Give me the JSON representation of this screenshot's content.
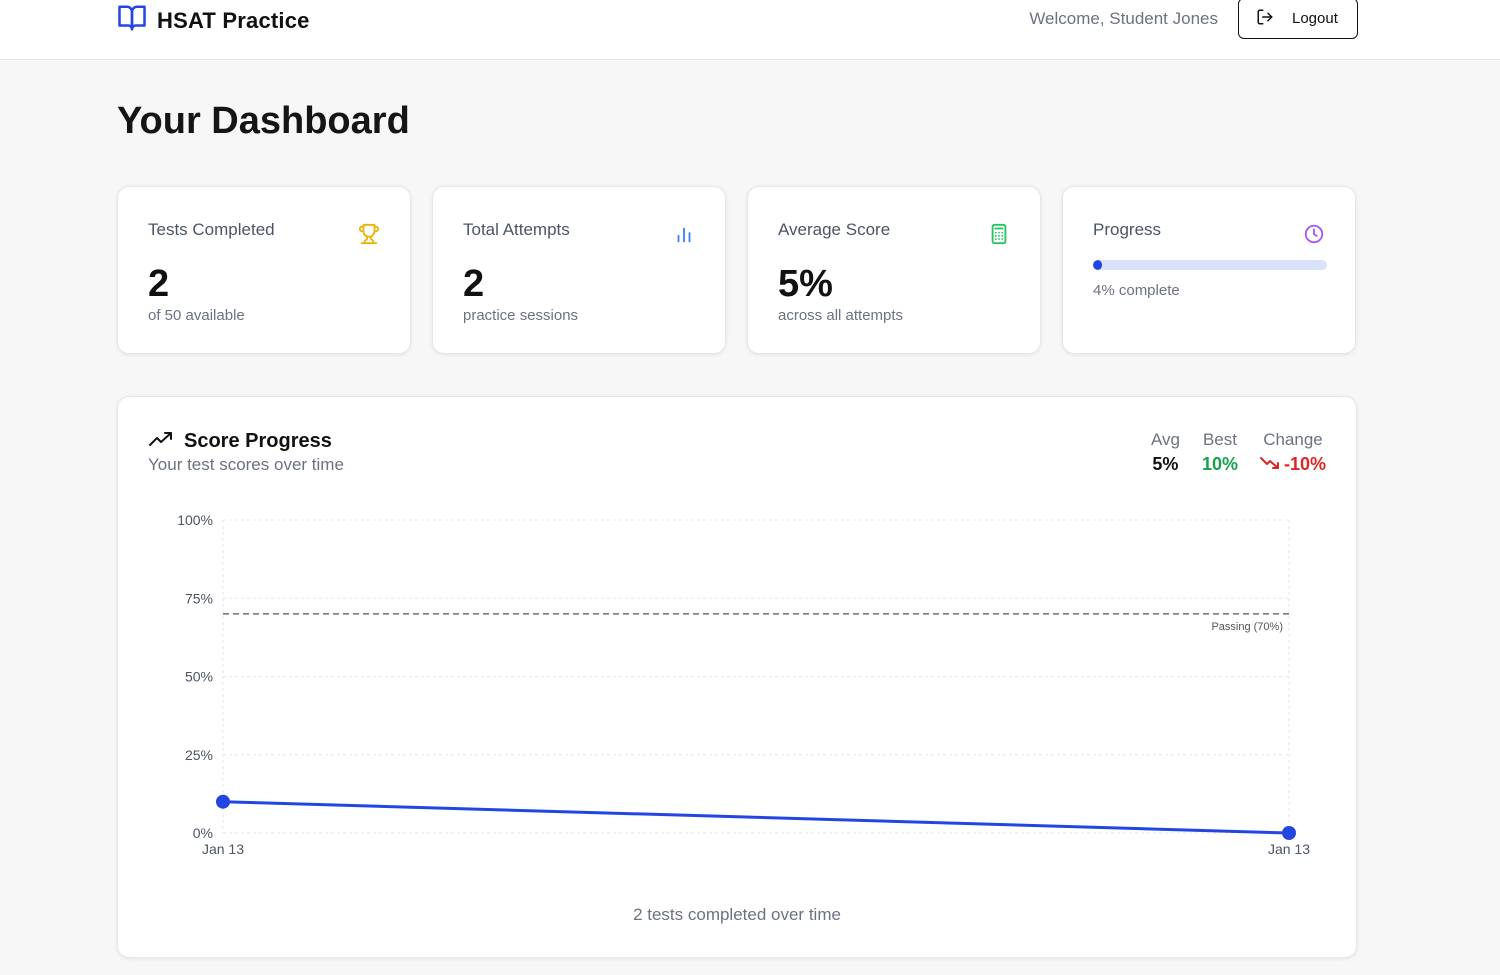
{
  "header": {
    "app_title": "HSAT Practice",
    "logo_icon": "book-open-icon",
    "welcome": "Welcome, Student Jones",
    "logout_label": "Logout",
    "logout_icon": "logout-icon"
  },
  "page": {
    "title": "Your Dashboard"
  },
  "cards": {
    "tests_completed": {
      "label": "Tests Completed",
      "value": "2",
      "sub": "of 50 available",
      "icon": "trophy-icon",
      "icon_color": "#eab308"
    },
    "total_attempts": {
      "label": "Total Attempts",
      "value": "2",
      "sub": "practice sessions",
      "icon": "bar-chart-icon",
      "icon_color": "#3b82f6"
    },
    "average_score": {
      "label": "Average Score",
      "value": "5%",
      "sub": "across all attempts",
      "icon": "calculator-icon",
      "icon_color": "#22c55e"
    },
    "progress": {
      "label": "Progress",
      "percent": 4,
      "sub": "4% complete",
      "icon": "clock-icon",
      "icon_color": "#a855f7"
    }
  },
  "score_progress": {
    "title": "Score Progress",
    "subtitle": "Your test scores over time",
    "icon": "trending-up-icon",
    "stats": {
      "avg_label": "Avg",
      "avg_value": "5%",
      "best_label": "Best",
      "best_value": "10%",
      "change_label": "Change",
      "change_value": "-10%",
      "change_icon": "trending-down-icon"
    },
    "footer": "2 tests completed over time"
  },
  "colors": {
    "accent": "#2346e2",
    "best": "#16a34a",
    "change": "#dc2626"
  },
  "chart_data": {
    "type": "line",
    "x": [
      "Jan 13",
      "Jan 13"
    ],
    "series": [
      {
        "values": [
          10,
          0
        ]
      }
    ],
    "ylim": [
      0,
      100
    ],
    "yticks": [
      "0%",
      "25%",
      "50%",
      "75%",
      "100%"
    ],
    "ytick_values": [
      0,
      25,
      50,
      75,
      100
    ],
    "reference_line": {
      "value": 70,
      "label": "Passing (70%)"
    },
    "grid": true
  }
}
